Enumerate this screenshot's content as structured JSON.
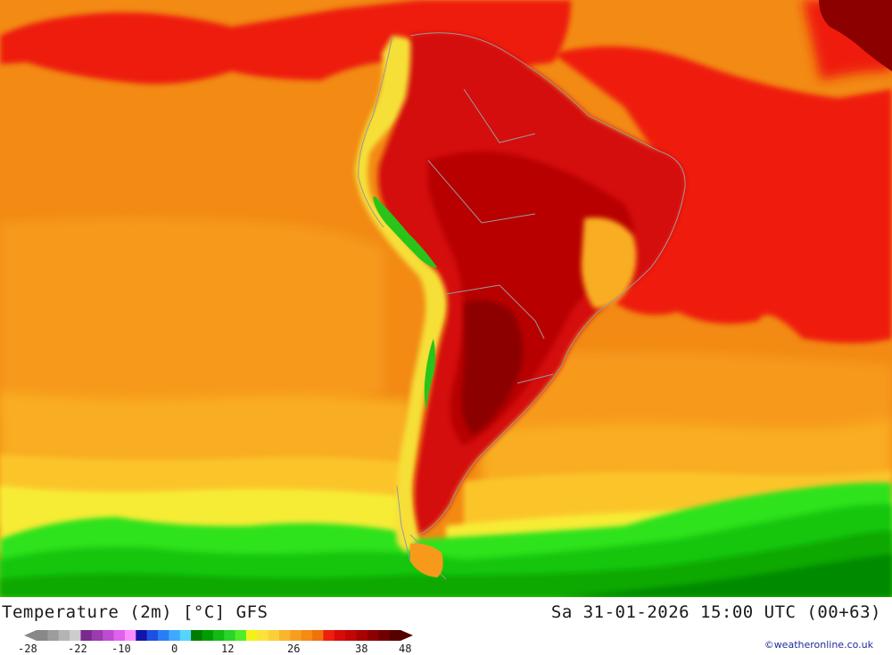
{
  "map": {
    "colors": {
      "background": "#f28a14",
      "band_deep_orange": "#ea7d0e",
      "band_light_orange": "#f79a1b",
      "band_amber": "#f9ad20",
      "band_yellow_orange": "#fbc52a",
      "band_yellow": "#f7ec35",
      "band_light_green": "#2ee21a",
      "band_green": "#14c60f",
      "band_dark_green": "#07a805",
      "band_deeper_green": "#028a02",
      "atlantic_red": "#ef1a0c",
      "pacific_red": "#ed1c0f",
      "land_hot": "#d40a0a",
      "land_very_hot": "#b80404",
      "land_extreme": "#8d0000",
      "andes_yellow": "#f6e039",
      "andes_green": "#28c41a",
      "borders": "#9a9a9a"
    },
    "region": "South America"
  },
  "title": {
    "left": "Temperature (2m) [°C] GFS",
    "right": "Sa 31-01-2026 15:00 UTC (00+63)"
  },
  "legend": {
    "ticks": [
      "-28",
      "-22",
      "-10",
      "0",
      "12",
      "26",
      "38",
      "48"
    ],
    "colors": [
      "#888888",
      "#9c9c9c",
      "#b4b4b4",
      "#cdcdcd",
      "#7a2a8e",
      "#9a3bae",
      "#c04ad2",
      "#e061ec",
      "#ff8cff",
      "#1414aa",
      "#1f4fe0",
      "#2a7ef5",
      "#3fa9ff",
      "#55d4ff",
      "#007d00",
      "#009d00",
      "#12bb12",
      "#2ad42a",
      "#50ec2a",
      "#f2f21a",
      "#fbe33a",
      "#fbcf3a",
      "#f9b52c",
      "#f79e22",
      "#f58a14",
      "#f0720a",
      "#ee1f0f",
      "#d80a0a",
      "#c20606",
      "#a80303",
      "#8e0000",
      "#720000",
      "#560000"
    ]
  },
  "credit": "©weatheronline.co.uk"
}
